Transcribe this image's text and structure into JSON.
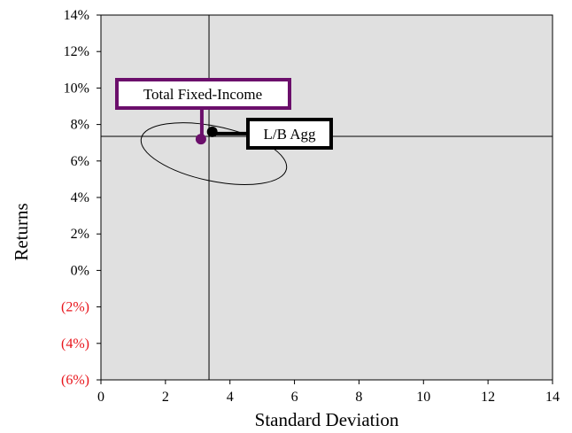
{
  "chart_data": {
    "type": "scatter",
    "xlabel": "Standard Deviation",
    "ylabel": "Returns",
    "xlim": [
      0,
      14
    ],
    "ylim": [
      -6,
      14
    ],
    "x_ticks": [
      0,
      2,
      4,
      6,
      8,
      10,
      12,
      14
    ],
    "x_tick_labels": [
      "0",
      "2",
      "4",
      "6",
      "8",
      "10",
      "12",
      "14"
    ],
    "y_ticks": [
      -6,
      -4,
      -2,
      0,
      2,
      4,
      6,
      8,
      10,
      12,
      14
    ],
    "y_tick_labels": [
      "(6%)",
      "(4%)",
      "(2%)",
      "0%",
      "2%",
      "4%",
      "6%",
      "8%",
      "10%",
      "12%",
      "14%"
    ],
    "grid": false,
    "reference_lines": {
      "x": 3.35,
      "y": 7.35
    },
    "points": [
      {
        "label": "Total Fixed-Income",
        "x": 3.1,
        "y": 7.2,
        "color": "#6b0f6b"
      },
      {
        "label": "L/B Agg",
        "x": 3.45,
        "y": 7.6,
        "color": "#000000"
      }
    ],
    "ellipse": {
      "cx": 3.5,
      "cy": 6.4,
      "rx": 2.3,
      "ry": 1.5,
      "rotation_deg": 12
    },
    "colors": {
      "plot_background": "#e0e0e0",
      "negative_tick": "#e8141b",
      "callout_fixed_income": "#6b0f6b",
      "callout_agg": "#000000"
    }
  }
}
